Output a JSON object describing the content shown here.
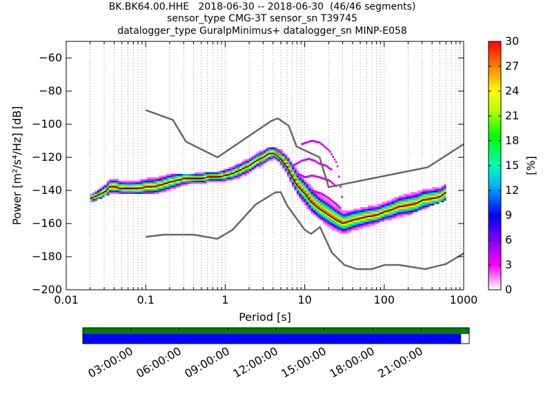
{
  "title_lines": [
    "BK.BK64.00.HHE   2018-06-30 -- 2018-06-30  (46/46 segments)",
    "sensor_type CMG-3T sensor_sn T39745",
    "datalogger_type GuralpMinimus+ datalogger_sn MINP-E058"
  ],
  "chart_data": {
    "type": "heatmap",
    "xlabel": "Period [s]",
    "ylabel": "Power [m²/s⁴/Hz] [dB]",
    "xscale": "log",
    "xlim": [
      0.01,
      1000
    ],
    "ylim": [
      -200,
      -50
    ],
    "x_ticks": [
      0.01,
      0.1,
      1,
      10,
      100,
      1000
    ],
    "x_tick_labels": [
      "0.01",
      "0.1",
      "1",
      "10",
      "100",
      "1000"
    ],
    "y_ticks": [
      -200,
      -180,
      -160,
      -140,
      -120,
      -100,
      -80,
      -60
    ],
    "y_tick_labels": [
      "−200",
      "−180",
      "−160",
      "−140",
      "−120",
      "−100",
      "−80",
      "−60"
    ],
    "grid": "dotted vertical lines at log decades",
    "colorbar": {
      "label": "[%]",
      "range": [
        0,
        30
      ],
      "ticks": [
        0,
        3,
        6,
        9,
        12,
        15,
        18,
        21,
        24,
        27,
        30
      ],
      "tick_labels": [
        "0",
        "3",
        "6",
        "9",
        "12",
        "15",
        "18",
        "21",
        "24",
        "27",
        "30"
      ]
    },
    "noise_models": [
      {
        "role": "high-noise-model",
        "x": [
          0.1,
          0.22,
          0.32,
          0.8,
          3.8,
          4.6,
          6.3,
          7.9,
          15.4,
          20,
          354,
          1000
        ],
        "y": [
          -91.5,
          -97.4,
          -110.5,
          -120,
          -98,
          -96.5,
          -101,
          -113.5,
          -120,
          -138,
          -126,
          -112
        ]
      },
      {
        "role": "low-noise-model",
        "x": [
          0.1,
          0.17,
          0.4,
          0.8,
          1.24,
          2.4,
          4.3,
          5.0,
          6.0,
          10,
          12,
          15.6,
          21.9,
          31.6,
          45,
          70,
          101,
          154,
          328,
          600,
          1000
        ],
        "y": [
          -168,
          -166.7,
          -166.7,
          -169.2,
          -163.7,
          -148.6,
          -141.1,
          -141.1,
          -149,
          -163.8,
          -166.2,
          -162.1,
          -177.5,
          -185,
          -187.5,
          -187.5,
          -185,
          -185,
          -187.5,
          -184.4,
          -178
        ]
      }
    ],
    "psd_mode": {
      "x": [
        0.02,
        0.025,
        0.03,
        0.035,
        0.04,
        0.05,
        0.06,
        0.08,
        0.1,
        0.12,
        0.15,
        0.2,
        0.25,
        0.3,
        0.4,
        0.5,
        0.6,
        0.8,
        1,
        1.2,
        1.5,
        2,
        2.5,
        3,
        3.5,
        4,
        4.5,
        5,
        6,
        7,
        8,
        10,
        12,
        15,
        20,
        25,
        30,
        35,
        40,
        50,
        60,
        80,
        100,
        120,
        150,
        200,
        250,
        300,
        400,
        500,
        600
      ],
      "y": [
        -145,
        -143,
        -141,
        -138,
        -138,
        -139,
        -139,
        -139,
        -138,
        -138,
        -137,
        -135,
        -134,
        -133,
        -133,
        -133,
        -132,
        -132,
        -131,
        -130,
        -128,
        -125,
        -122,
        -120,
        -118,
        -117.5,
        -119,
        -121,
        -126,
        -132,
        -137,
        -142,
        -147,
        -151,
        -155,
        -158,
        -160,
        -159,
        -158,
        -157,
        -156,
        -155,
        -153,
        -152,
        -150,
        -149,
        -148,
        -146,
        -145,
        -144,
        -141
      ]
    },
    "psd_density_band": {
      "x": [
        0.02,
        0.03,
        0.04,
        0.06,
        0.1,
        0.2,
        0.4,
        0.8,
        1.5,
        3,
        4.5,
        7,
        10,
        20,
        30,
        50,
        100,
        200,
        600
      ],
      "upper": [
        -143,
        -135,
        -134,
        -135,
        -133,
        -131,
        -131,
        -130,
        -124,
        -116,
        -115,
        -125,
        -136,
        -148,
        -154,
        -152,
        -148,
        -142,
        -135
      ],
      "lower": [
        -147,
        -143,
        -142,
        -142,
        -142,
        -140,
        -137,
        -136,
        -132,
        -124,
        -122,
        -138,
        -150,
        -162,
        -166,
        -163,
        -158,
        -154,
        -145
      ]
    },
    "outlier_traces": [
      {
        "x": [
          7,
          9,
          11,
          13,
          15,
          18,
          22
        ],
        "y": [
          -125,
          -122,
          -121,
          -122,
          -124,
          -125,
          -128
        ]
      },
      {
        "x": [
          9,
          12,
          15,
          20,
          25,
          30
        ],
        "y": [
          -112,
          -110,
          -111,
          -116,
          -124,
          -150
        ]
      },
      {
        "x": [
          8,
          10,
          12,
          15,
          20,
          25
        ],
        "y": [
          -130,
          -132,
          -131,
          -132,
          -134,
          -138
        ]
      },
      {
        "x": [
          12,
          16,
          20,
          24,
          28
        ],
        "y": [
          -140,
          -142,
          -145,
          -148,
          -151
        ]
      }
    ]
  },
  "data_availability": {
    "time_tick_labels": [
      "03:00:00",
      "06:00:00",
      "09:00:00",
      "12:00:00",
      "15:00:00",
      "18:00:00",
      "21:00:00"
    ],
    "data_coverage_fraction": 0.979,
    "psd_coverage_fraction": 1.0,
    "data_color": "#0000ff",
    "psd_color": "#008000"
  }
}
